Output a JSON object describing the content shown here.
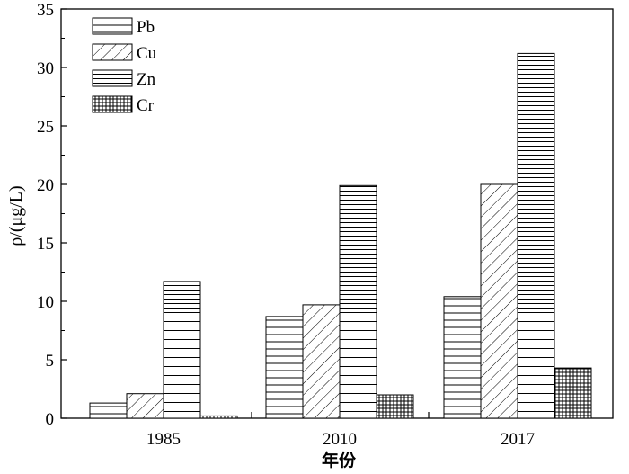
{
  "chart_data": {
    "type": "bar",
    "categories": [
      "1985",
      "2010",
      "2017"
    ],
    "series": [
      {
        "name": "Pb",
        "values": [
          1.3,
          8.7,
          10.4
        ],
        "pattern": "horizontal-sparse"
      },
      {
        "name": "Cu",
        "values": [
          2.1,
          9.7,
          20.0
        ],
        "pattern": "diagonal"
      },
      {
        "name": "Zn",
        "values": [
          11.7,
          19.9,
          31.2
        ],
        "pattern": "horizontal-dense"
      },
      {
        "name": "Cr",
        "values": [
          0.2,
          2.0,
          4.3
        ],
        "pattern": "crosshatch"
      }
    ],
    "xlabel": "年份",
    "ylabel": "ρ/(μg/L)",
    "ylim": [
      0,
      35
    ],
    "yticks": [
      "0",
      "5",
      "10",
      "15",
      "20",
      "25",
      "30",
      "35"
    ],
    "legend": "top-left",
    "grid": false
  }
}
